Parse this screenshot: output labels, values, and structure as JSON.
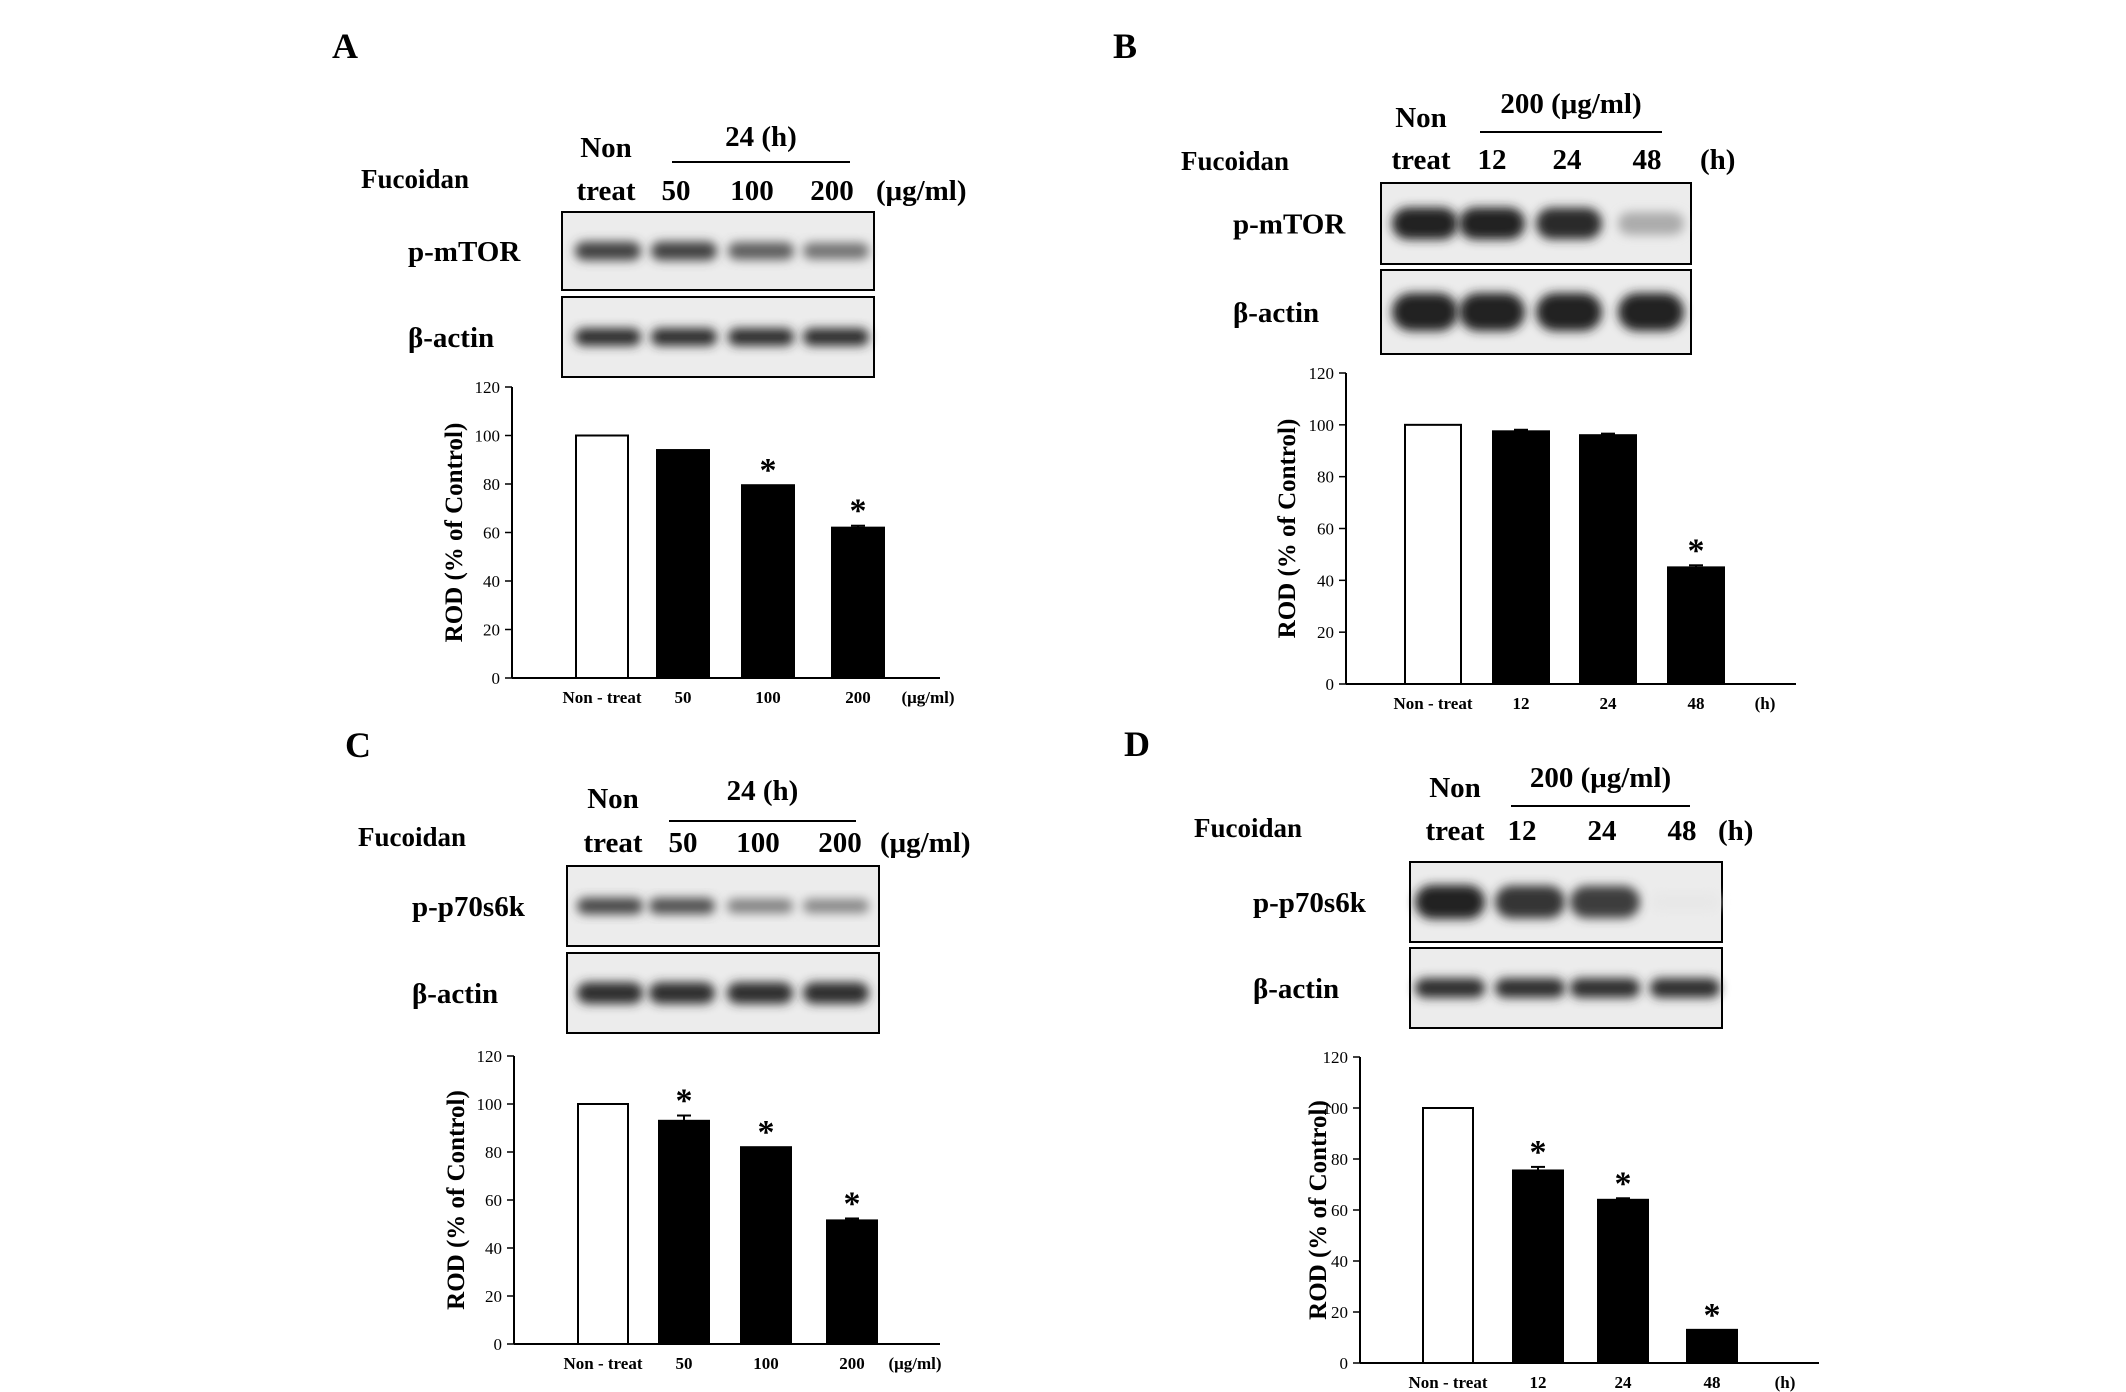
{
  "panels": [
    {
      "label": "A",
      "treatment_label": "Fucoidan",
      "control_label": [
        "Non",
        "treat"
      ],
      "group_header": "24 (h)",
      "lane_labels": [
        "50",
        "100",
        "200"
      ],
      "unit_label": "(μg/ml)",
      "blots": [
        {
          "label": "p-mTOR",
          "band_intensity": [
            0.85,
            0.85,
            0.72,
            0.62
          ]
        },
        {
          "label": "β-actin",
          "band_intensity": [
            0.95,
            0.95,
            0.95,
            0.95
          ]
        }
      ]
    },
    {
      "label": "B",
      "treatment_label": "Fucoidan",
      "control_label": [
        "Non",
        "treat"
      ],
      "group_header": "200 (μg/ml)",
      "lane_labels": [
        "12",
        "24",
        "48"
      ],
      "unit_label": "(h)",
      "blots": [
        {
          "label": "p-mTOR",
          "band_intensity": [
            1.0,
            1.0,
            0.97,
            0.35
          ]
        },
        {
          "label": "β-actin",
          "band_intensity": [
            1.0,
            1.0,
            1.0,
            1.0
          ]
        }
      ]
    },
    {
      "label": "C",
      "treatment_label": "Fucoidan",
      "control_label": [
        "Non",
        "treat"
      ],
      "group_header": "24 (h)",
      "lane_labels": [
        "50",
        "100",
        "200"
      ],
      "unit_label": "(μg/ml)",
      "blots": [
        {
          "label": "p-p70s6k",
          "band_intensity": [
            0.82,
            0.78,
            0.55,
            0.52
          ]
        },
        {
          "label": "β-actin",
          "band_intensity": [
            0.95,
            0.95,
            0.95,
            0.95
          ]
        }
      ]
    },
    {
      "label": "D",
      "treatment_label": "Fucoidan",
      "control_label": [
        "Non",
        "treat"
      ],
      "group_header": "200 (μg/ml)",
      "lane_labels": [
        "12",
        "24",
        "48"
      ],
      "unit_label": "(h)",
      "blots": [
        {
          "label": "p-p70s6k",
          "band_intensity": [
            1.0,
            0.92,
            0.88,
            0.06
          ]
        },
        {
          "label": "β-actin",
          "band_intensity": [
            0.95,
            0.95,
            0.95,
            0.95
          ]
        }
      ]
    }
  ],
  "chart_data": [
    {
      "panel": "A",
      "type": "bar",
      "categories": [
        "Non - treat",
        "50",
        "100",
        "200"
      ],
      "x_unit_label": "(μg/ml)",
      "values": [
        100,
        94,
        79.5,
        62
      ],
      "errors": [
        0,
        0,
        0,
        0.8
      ],
      "significant": [
        false,
        false,
        true,
        true
      ],
      "fill": [
        "#ffffff",
        "#000000",
        "#000000",
        "#000000"
      ],
      "ylabel": "ROD (% of Control)",
      "ylim": [
        0,
        120
      ],
      "yticks": [
        0,
        20,
        40,
        60,
        80,
        100,
        120
      ]
    },
    {
      "panel": "B",
      "type": "bar",
      "categories": [
        "Non - treat",
        "12",
        "24",
        "48"
      ],
      "x_unit_label": "(h)",
      "values": [
        100,
        97.5,
        96,
        45
      ],
      "errors": [
        0,
        0.6,
        0.6,
        0.8
      ],
      "significant": [
        false,
        false,
        false,
        true
      ],
      "fill": [
        "#ffffff",
        "#000000",
        "#000000",
        "#000000"
      ],
      "ylabel": "ROD (% of Control)",
      "ylim": [
        0,
        120
      ],
      "yticks": [
        0,
        20,
        40,
        60,
        80,
        100,
        120
      ]
    },
    {
      "panel": "C",
      "type": "bar",
      "categories": [
        "Non - treat",
        "50",
        "100",
        "200"
      ],
      "x_unit_label": "(μg/ml)",
      "values": [
        100,
        93,
        82,
        51.5
      ],
      "errors": [
        0,
        2.2,
        0,
        0.8
      ],
      "significant": [
        false,
        true,
        true,
        true
      ],
      "fill": [
        "#ffffff",
        "#000000",
        "#000000",
        "#000000"
      ],
      "ylabel": "ROD (% of Control)",
      "ylim": [
        0,
        120
      ],
      "yticks": [
        0,
        20,
        40,
        60,
        80,
        100,
        120
      ]
    },
    {
      "panel": "D",
      "type": "bar",
      "categories": [
        "Non - treat",
        "12",
        "24",
        "48"
      ],
      "x_unit_label": "(h)",
      "values": [
        100,
        75.5,
        64,
        13
      ],
      "errors": [
        0,
        1.4,
        0.6,
        0
      ],
      "significant": [
        false,
        true,
        true,
        true
      ],
      "fill": [
        "#ffffff",
        "#000000",
        "#000000",
        "#000000"
      ],
      "ylabel": "ROD (% of Control)",
      "ylim": [
        0,
        120
      ],
      "yticks": [
        0,
        20,
        40,
        60,
        80,
        100,
        120
      ]
    }
  ],
  "significance_symbol": "*"
}
